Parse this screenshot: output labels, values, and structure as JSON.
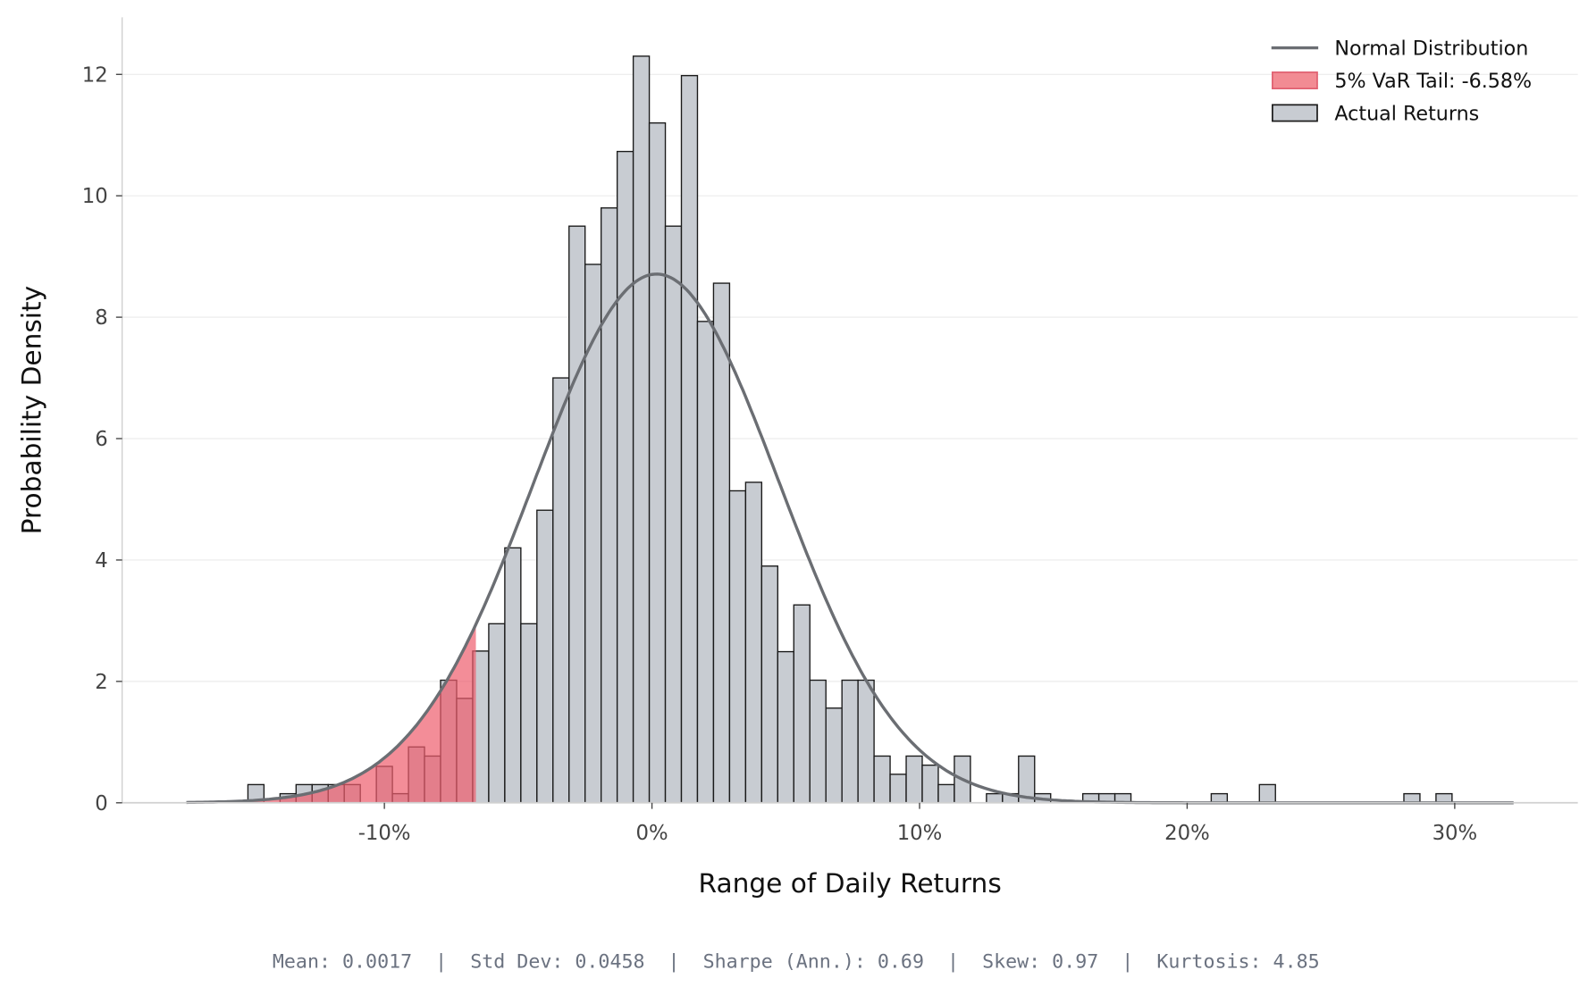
{
  "chart_data": {
    "type": "histogram",
    "xlabel": "Range of Daily Returns",
    "ylabel": "Probability Density",
    "x_unit": "percent",
    "xlim": [
      -19.8,
      34.6
    ],
    "ylim": [
      0,
      12.94
    ],
    "xticks": [
      -10,
      0,
      10,
      20,
      30
    ],
    "xtick_labels": [
      "-10%",
      "0%",
      "10%",
      "20%",
      "30%"
    ],
    "yticks": [
      0,
      2,
      4,
      6,
      8,
      10,
      12
    ],
    "ytick_labels": [
      "0",
      "2",
      "4",
      "6",
      "8",
      "10",
      "12"
    ],
    "grid": "horizontal",
    "legend_position": "top-right",
    "histogram": {
      "name": "Actual Returns",
      "bin_start": -15.1,
      "bin_width": 0.6,
      "densities": [
        0.3,
        0,
        0.15,
        0.3,
        0.3,
        0.3,
        0.3,
        0,
        0.6,
        0.15,
        0.92,
        0.77,
        2.02,
        1.72,
        2.5,
        2.95,
        4.2,
        2.95,
        4.82,
        7.0,
        9.5,
        8.87,
        9.8,
        10.73,
        12.3,
        11.2,
        9.5,
        11.98,
        7.93,
        8.56,
        5.14,
        5.28,
        3.9,
        2.49,
        3.26,
        2.02,
        1.56,
        2.02,
        2.02,
        0.77,
        0.47,
        0.77,
        0.62,
        0.3,
        0.77,
        0,
        0.15,
        0.15,
        0.77,
        0.15,
        0,
        0,
        0.15,
        0.15,
        0.15,
        0,
        0,
        0,
        0,
        0,
        0.15,
        0,
        0,
        0.3,
        0,
        0,
        0,
        0,
        0,
        0,
        0,
        0,
        0.15,
        0,
        0.15
      ],
      "color": "#c8ccd2",
      "edge_color": "#1a1a1a"
    },
    "normal_curve": {
      "name": "Normal Distribution",
      "mean": 0.0017,
      "std": 0.0458,
      "x_range": [
        -17.4,
        32.2
      ],
      "color": "#6b6e73"
    },
    "var_tail": {
      "name": "5% VaR Tail: -6.58%",
      "threshold": -6.58,
      "color": "#ee5d6c"
    },
    "legend": [
      "Normal Distribution",
      "5% VaR Tail: -6.58%",
      "Actual Returns"
    ],
    "stats_text": "Mean: 0.0017  |  Std Dev: 0.0458  |  Sharpe (Ann.): 0.69  |  Skew: 0.97  |  Kurtosis: 4.85"
  }
}
